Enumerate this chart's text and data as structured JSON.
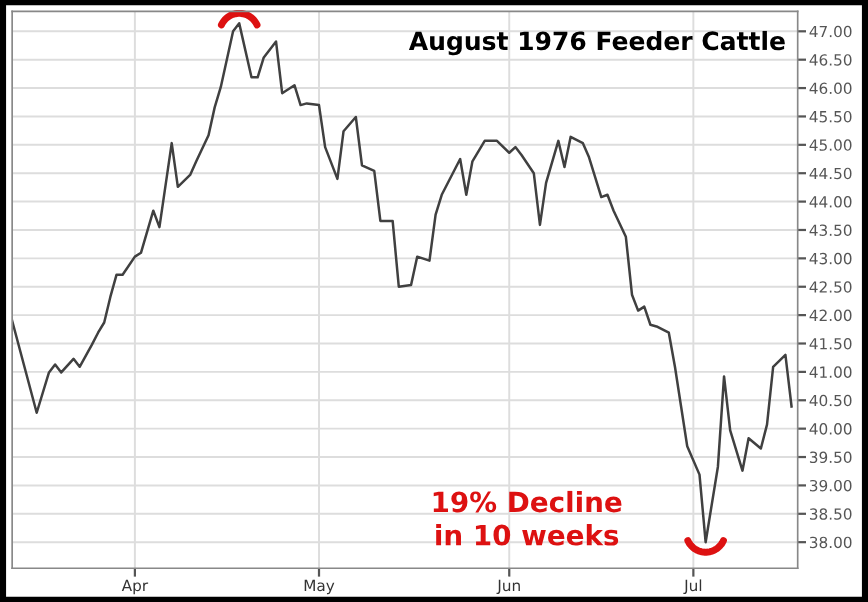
{
  "chart_data": {
    "type": "line",
    "title": "August 1976 Feeder Cattle",
    "x": [
      "1976-03-12",
      "1976-03-16",
      "1976-03-18",
      "1976-03-19",
      "1976-03-20",
      "1976-03-22",
      "1976-03-23",
      "1976-03-25",
      "1976-03-26",
      "1976-03-27",
      "1976-03-28",
      "1976-03-29",
      "1976-03-30",
      "1976-04-01",
      "1976-04-02",
      "1976-04-04",
      "1976-04-05",
      "1976-04-07",
      "1976-04-08",
      "1976-04-10",
      "1976-04-11",
      "1976-04-13",
      "1976-04-14",
      "1976-04-15",
      "1976-04-17",
      "1976-04-18",
      "1976-04-20",
      "1976-04-21",
      "1976-04-22",
      "1976-04-24",
      "1976-04-25",
      "1976-04-27",
      "1976-04-28",
      "1976-04-29",
      "1976-05-01",
      "1976-05-02",
      "1976-05-04",
      "1976-05-05",
      "1976-05-07",
      "1976-05-08",
      "1976-05-10",
      "1976-05-11",
      "1976-05-13",
      "1976-05-14",
      "1976-05-16",
      "1976-05-17",
      "1976-05-19",
      "1976-05-20",
      "1976-05-21",
      "1976-05-24",
      "1976-05-25",
      "1976-05-26",
      "1976-05-28",
      "1976-05-30",
      "1976-06-01",
      "1976-06-02",
      "1976-06-03",
      "1976-06-05",
      "1976-06-06",
      "1976-06-07",
      "1976-06-09",
      "1976-06-10",
      "1976-06-11",
      "1976-06-13",
      "1976-06-14",
      "1976-06-16",
      "1976-06-17",
      "1976-06-18",
      "1976-06-20",
      "1976-06-21",
      "1976-06-22",
      "1976-06-23",
      "1976-06-24",
      "1976-06-25",
      "1976-06-27",
      "1976-06-28",
      "1976-06-29",
      "1976-06-30",
      "1976-07-02",
      "1976-07-03",
      "1976-07-05",
      "1976-07-06",
      "1976-07-07",
      "1976-07-09",
      "1976-07-10",
      "1976-07-12",
      "1976-07-13",
      "1976-07-14",
      "1976-07-16",
      "1976-07-17"
    ],
    "series": [
      {
        "color": "#404040",
        "values": [
          41.9,
          40.28,
          40.99,
          41.13,
          40.99,
          41.23,
          41.09,
          41.48,
          41.69,
          41.87,
          42.32,
          42.71,
          42.71,
          43.03,
          43.1,
          43.84,
          43.55,
          45.03,
          44.26,
          44.47,
          44.71,
          45.17,
          45.66,
          46.02,
          47.0,
          47.14,
          46.19,
          46.19,
          46.54,
          46.82,
          45.91,
          46.05,
          45.7,
          45.73,
          45.7,
          44.96,
          44.4,
          45.24,
          45.49,
          44.64,
          44.54,
          43.66,
          43.66,
          42.5,
          42.53,
          43.03,
          42.96,
          43.77,
          44.12,
          44.75,
          44.12,
          44.71,
          45.07,
          45.07,
          44.86,
          44.96,
          44.82,
          44.5,
          43.59,
          44.33,
          45.07,
          44.61,
          45.14,
          45.03,
          44.78,
          44.08,
          44.12,
          43.84,
          43.38,
          42.36,
          42.08,
          42.15,
          41.83,
          41.8,
          41.69,
          41.09,
          40.39,
          39.69,
          39.19,
          38.0,
          39.33,
          40.92,
          39.97,
          39.26,
          39.83,
          39.65,
          40.07,
          41.09,
          41.3,
          40.39
        ]
      }
    ],
    "xlim": [
      "1976-03-12",
      "1976-07-18"
    ],
    "xticks": [
      {
        "value": "1976-04-01",
        "label": "Apr"
      },
      {
        "value": "1976-05-01",
        "label": "May"
      },
      {
        "value": "1976-06-01",
        "label": "Jun"
      },
      {
        "value": "1976-07-01",
        "label": "Jul"
      }
    ],
    "ylim": [
      37.54,
      47.35
    ],
    "yticks": [
      {
        "value": 38,
        "label": "38.00"
      },
      {
        "value": 38.5,
        "label": "38.50"
      },
      {
        "value": 39,
        "label": "39.00"
      },
      {
        "value": 39.5,
        "label": "39.50"
      },
      {
        "value": 40,
        "label": "40.00"
      },
      {
        "value": 40.5,
        "label": "40.50"
      },
      {
        "value": 41,
        "label": "41.00"
      },
      {
        "value": 41.5,
        "label": "41.50"
      },
      {
        "value": 42,
        "label": "42.00"
      },
      {
        "value": 42.5,
        "label": "42.50"
      },
      {
        "value": 43,
        "label": "43.00"
      },
      {
        "value": 43.5,
        "label": "43.50"
      },
      {
        "value": 44,
        "label": "44.00"
      },
      {
        "value": 44.5,
        "label": "44.50"
      },
      {
        "value": 45,
        "label": "45.00"
      },
      {
        "value": 45.5,
        "label": "45.50"
      },
      {
        "value": 46,
        "label": "46.00"
      },
      {
        "value": 46.5,
        "label": "46.50"
      },
      {
        "value": 47,
        "label": "47.00"
      }
    ],
    "grid": true,
    "annotations": [
      "19% Decline\nin 10 weeks"
    ]
  }
}
